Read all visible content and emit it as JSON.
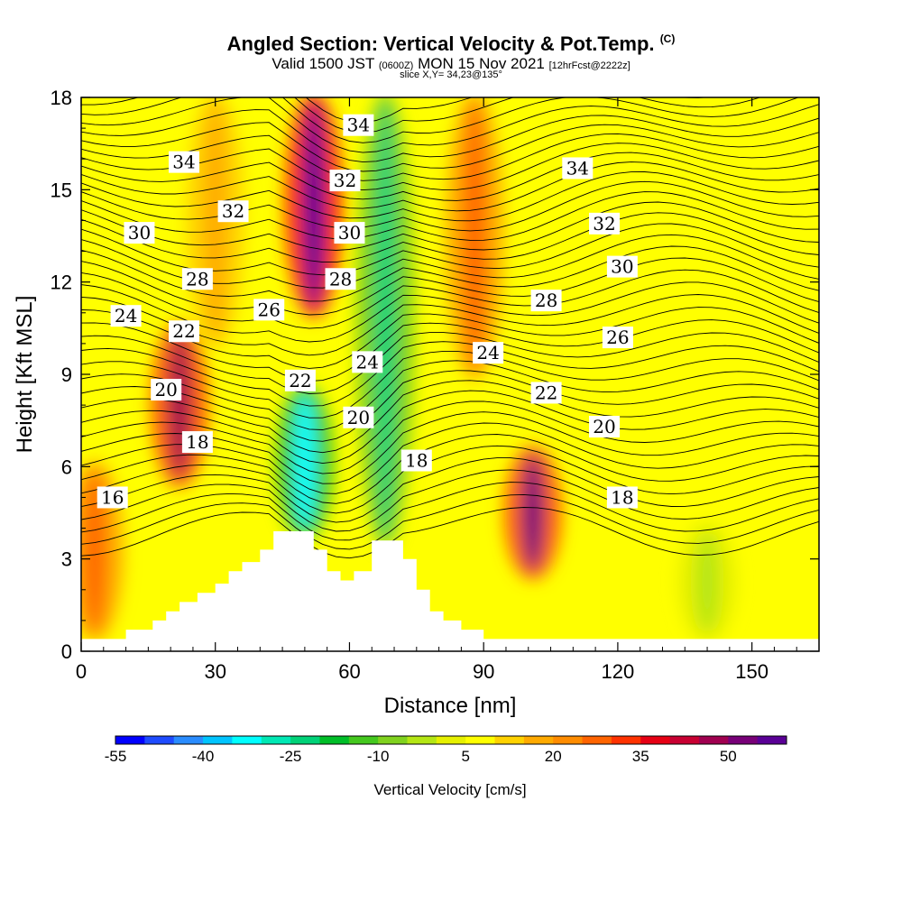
{
  "title": {
    "main": "Angled Section: Vertical Velocity & Pot.Temp.",
    "main_unit": "(C)",
    "valid_a": "Valid 1500 JST",
    "valid_utc": "(0600Z)",
    "valid_b": "MON 15 Nov 2021",
    "fcst": "[12hrFcst@2222z]",
    "slice": "slice X,Y= 34,23@135°"
  },
  "chart_data": {
    "type": "heatmap",
    "xlabel": "Distance [nm]",
    "ylabel": "Height [Kft MSL]",
    "xlim": [
      0,
      165
    ],
    "ylim": [
      0,
      18
    ],
    "xticks": [
      0,
      30,
      60,
      90,
      120,
      150
    ],
    "yticks": [
      0,
      3,
      6,
      9,
      12,
      15,
      18
    ],
    "colorbar": {
      "title": "Vertical Velocity [cm/s]",
      "ticks": [
        "-55",
        "-40",
        "-25",
        "-10",
        "5",
        "20",
        "35",
        "50"
      ],
      "colors": [
        "#0000ff",
        "#1e4bff",
        "#2a8cff",
        "#00c4ff",
        "#00ffff",
        "#00e8b4",
        "#00d278",
        "#00be28",
        "#44c81e",
        "#80d21e",
        "#b4e614",
        "#e6f000",
        "#ffff00",
        "#ffd200",
        "#ffaa00",
        "#ff8c00",
        "#ff6400",
        "#ff3200",
        "#e60014",
        "#c80032",
        "#a00050",
        "#780078",
        "#5a0096"
      ]
    },
    "vertical_velocity_bands": [
      {
        "x": 3,
        "y0": 0.5,
        "y1": 6,
        "value": 22
      },
      {
        "x": 22,
        "y0": 5.5,
        "y1": 10.5,
        "value": 40
      },
      {
        "x": 30,
        "y0": 10,
        "y1": 18,
        "value": 12
      },
      {
        "x": 50,
        "y0": 3.8,
        "y1": 8.5,
        "value": -42
      },
      {
        "x": 52,
        "y0": 11,
        "y1": 18,
        "value": 55
      },
      {
        "x": 68,
        "y0": 3.5,
        "y1": 18,
        "value": -28
      },
      {
        "x": 88,
        "y0": 9,
        "y1": 18,
        "value": 22
      },
      {
        "x": 101,
        "y0": 2.5,
        "y1": 6.5,
        "value": 45
      },
      {
        "x": 140,
        "y0": 0.5,
        "y1": 4,
        "value": -10
      }
    ],
    "theta_contours": [
      {
        "value": 16,
        "label_x": 7,
        "label_y": 5.0
      },
      {
        "value": 18,
        "label_x": 26,
        "label_y": 6.8,
        "label_x2": 75,
        "label_y2": 6.2,
        "label_x3": 121,
        "label_y3": 5.0
      },
      {
        "value": 20,
        "label_x": 19,
        "label_y": 8.5,
        "label_x2": 62,
        "label_y2": 7.6,
        "label_x3": 117,
        "label_y3": 7.3
      },
      {
        "value": 22,
        "label_x": 23,
        "label_y": 10.4,
        "label_x2": 49,
        "label_y2": 8.8,
        "label_x3": 104,
        "label_y3": 8.4
      },
      {
        "value": 24,
        "label_x": 10,
        "label_y": 10.9,
        "label_x2": 64,
        "label_y2": 9.4,
        "label_x3": 91,
        "label_y3": 9.7
      },
      {
        "value": 26,
        "label_x": 42,
        "label_y": 11.1,
        "label_x2": 120,
        "label_y2": 10.2
      },
      {
        "value": 28,
        "label_x": 26,
        "label_y": 12.1,
        "label_x2": 58,
        "label_y2": 12.1,
        "label_x3": 104,
        "label_y3": 11.4
      },
      {
        "value": 30,
        "label_x": 13,
        "label_y": 13.6,
        "label_x2": 60,
        "label_y2": 13.6,
        "label_x3": 121,
        "label_y3": 12.5
      },
      {
        "value": 32,
        "label_x": 34,
        "label_y": 14.3,
        "label_x2": 59,
        "label_y2": 15.3,
        "label_x3": 117,
        "label_y3": 13.9
      },
      {
        "value": 34,
        "label_x": 23,
        "label_y": 15.9,
        "label_x2": 62,
        "label_y2": 17.1,
        "label_x3": 111,
        "label_y3": 15.7
      }
    ],
    "terrain": [
      [
        0,
        0.4
      ],
      [
        10,
        0.4
      ],
      [
        10,
        0.7
      ],
      [
        16,
        0.7
      ],
      [
        16,
        1.0
      ],
      [
        19,
        1.0
      ],
      [
        19,
        1.3
      ],
      [
        22,
        1.3
      ],
      [
        22,
        1.6
      ],
      [
        26,
        1.6
      ],
      [
        26,
        1.9
      ],
      [
        30,
        1.9
      ],
      [
        30,
        2.2
      ],
      [
        33,
        2.2
      ],
      [
        33,
        2.6
      ],
      [
        36,
        2.6
      ],
      [
        36,
        2.9
      ],
      [
        40,
        2.9
      ],
      [
        40,
        3.3
      ],
      [
        43,
        3.3
      ],
      [
        43,
        3.9
      ],
      [
        52,
        3.9
      ],
      [
        52,
        3.3
      ],
      [
        55,
        3.3
      ],
      [
        55,
        2.6
      ],
      [
        58,
        2.6
      ],
      [
        58,
        2.3
      ],
      [
        61,
        2.3
      ],
      [
        61,
        2.6
      ],
      [
        65,
        2.6
      ],
      [
        65,
        3.6
      ],
      [
        72,
        3.6
      ],
      [
        72,
        3.0
      ],
      [
        75,
        3.0
      ],
      [
        75,
        2.0
      ],
      [
        78,
        2.0
      ],
      [
        78,
        1.3
      ],
      [
        81,
        1.3
      ],
      [
        81,
        1.0
      ],
      [
        85,
        1.0
      ],
      [
        85,
        0.7
      ],
      [
        90,
        0.7
      ],
      [
        90,
        0.4
      ],
      [
        165,
        0.4
      ]
    ]
  }
}
